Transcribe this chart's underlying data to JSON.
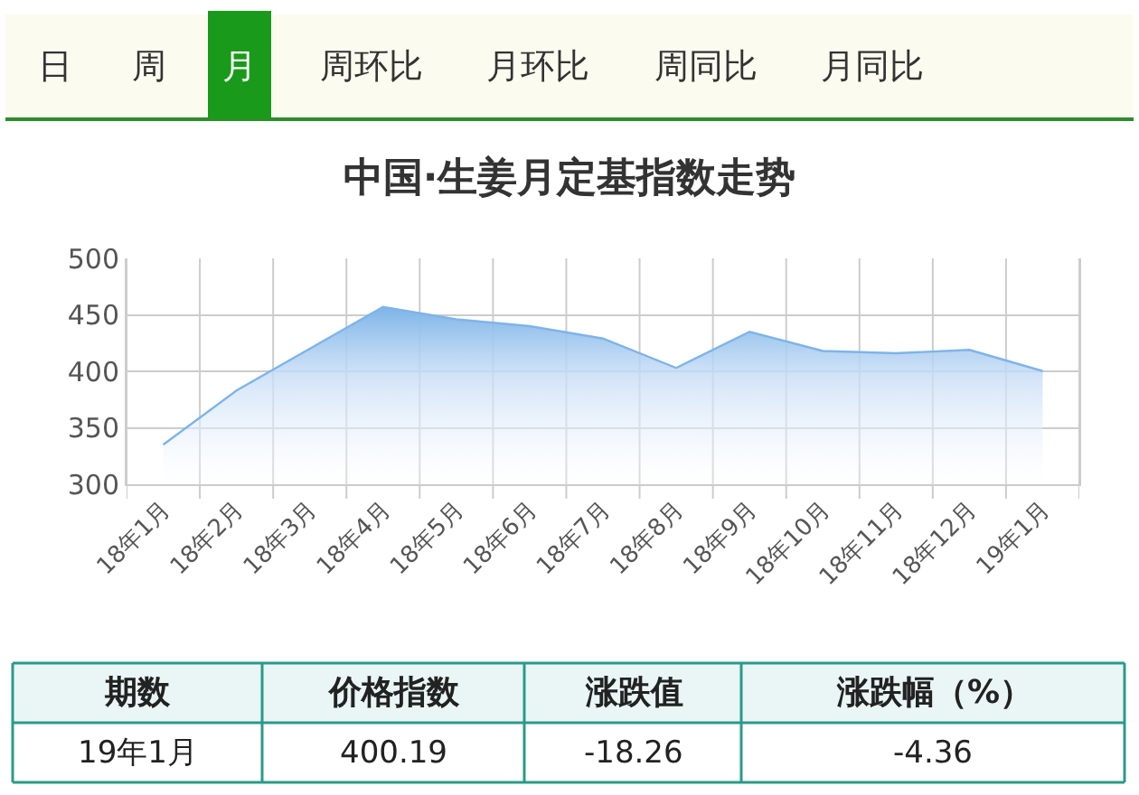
{
  "chart_data": {
    "type": "area",
    "title": "中国·生姜月定基指数走势",
    "categories": [
      "18年1月",
      "18年2月",
      "18年3月",
      "18年4月",
      "18年5月",
      "18年6月",
      "18年7月",
      "18年8月",
      "18年9月",
      "18年10月",
      "18年11月",
      "18年12月",
      "19年1月"
    ],
    "series": [
      {
        "color": "#7eb4e8",
        "values": [
          335,
          383,
          420,
          457,
          446,
          440,
          429,
          403,
          435,
          418,
          416,
          419,
          400.19
        ]
      }
    ],
    "ylim": [
      300,
      500
    ],
    "yticks": [
      300,
      350,
      400,
      450,
      500
    ],
    "grid": true,
    "legend": false,
    "marker": "none",
    "annotations": [
      "日",
      "周",
      "月",
      "周环比",
      "月环比",
      "周同比",
      "月同比",
      "期数",
      "价格指数",
      "涨跌值",
      "涨跌幅（%）",
      "19年1月",
      "400.19",
      "-18.26",
      "-4.36"
    ]
  }
}
